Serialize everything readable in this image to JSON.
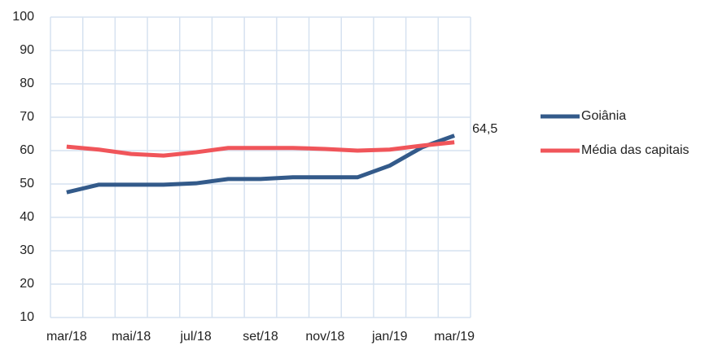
{
  "chart_data": {
    "type": "line",
    "categories": [
      "mar/18",
      null,
      "mai/18",
      null,
      "jul/18",
      null,
      "set/18",
      null,
      "nov/18",
      null,
      "jan/19",
      null,
      "mar/19"
    ],
    "series": [
      {
        "name": "Goiânia",
        "color": "#335a8a",
        "values": [
          47.5,
          49.8,
          49.8,
          49.8,
          50.2,
          51.5,
          51.5,
          52,
          52,
          52,
          55.5,
          61,
          64.5
        ],
        "value_labels": [
          null,
          null,
          null,
          null,
          null,
          null,
          null,
          null,
          null,
          null,
          null,
          null,
          "64,5"
        ]
      },
      {
        "name": "Média das capitais",
        "color": "#f0555a",
        "values": [
          61.2,
          60.3,
          59,
          58.5,
          59.5,
          60.8,
          60.8,
          60.8,
          60.5,
          60,
          60.3,
          61.5,
          62.5
        ]
      }
    ],
    "ylim": [
      10,
      100
    ],
    "yticks": [
      10,
      20,
      30,
      40,
      50,
      60,
      70,
      80,
      90,
      100
    ],
    "grid": true,
    "legend": "right"
  }
}
